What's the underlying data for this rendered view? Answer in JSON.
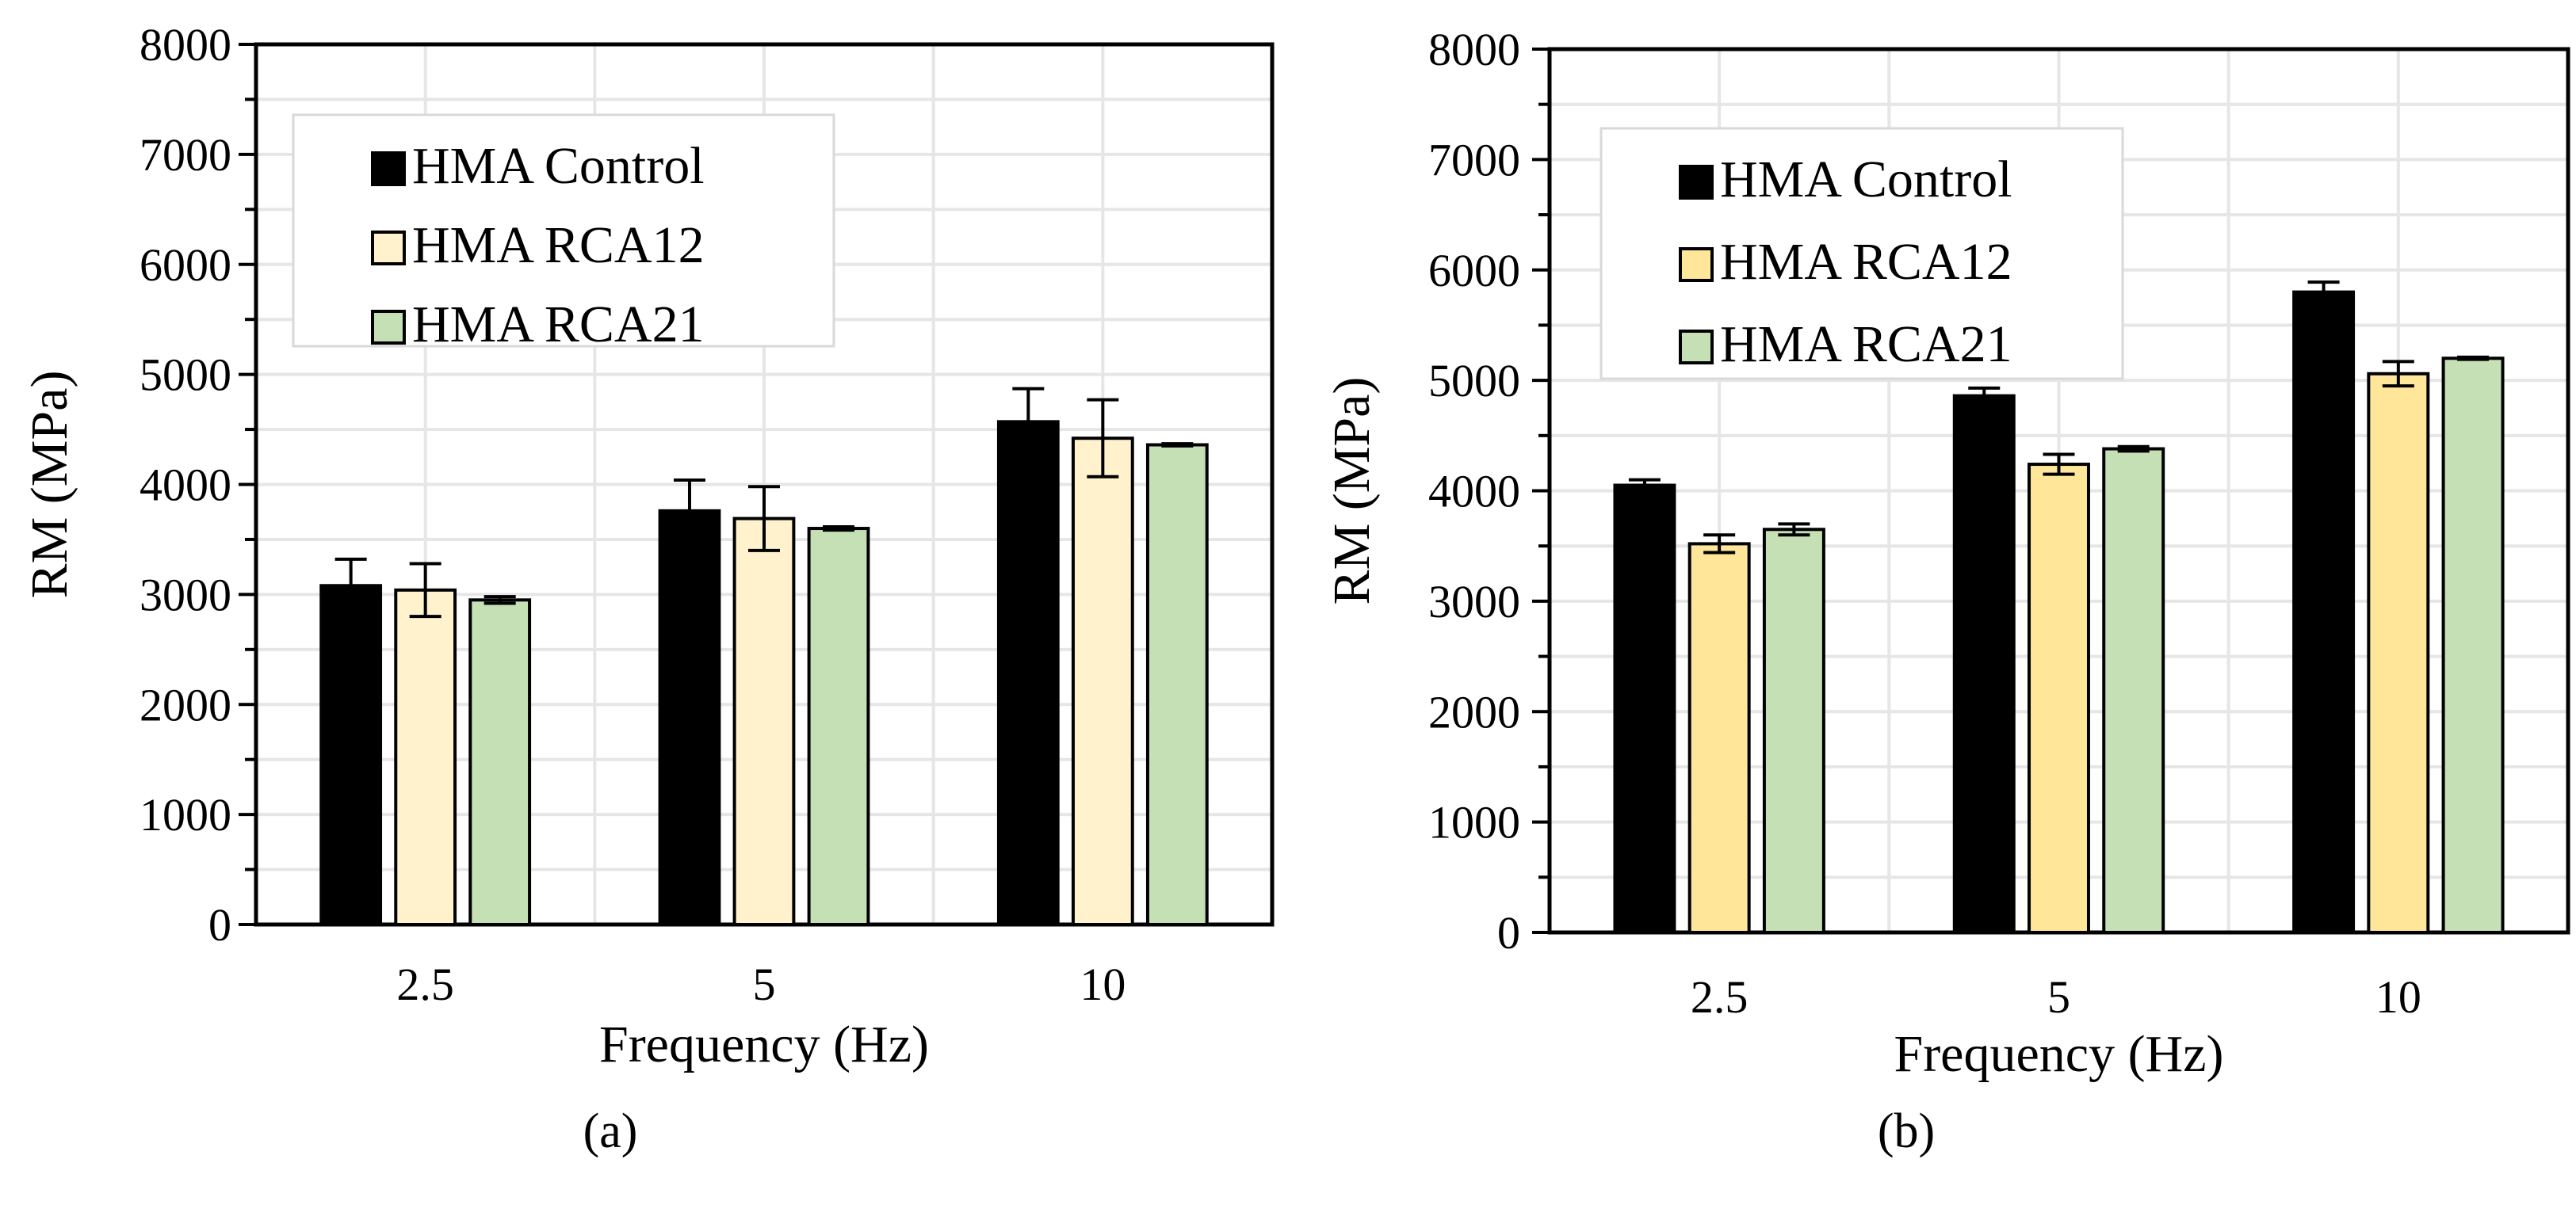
{
  "chart_data": [
    {
      "type": "bar",
      "panel_label": "(a)",
      "xlabel": "Frequency (Hz)",
      "ylabel": "RM (MPa)",
      "categories": [
        "2.5",
        "5",
        "10"
      ],
      "ylim": [
        0,
        8000
      ],
      "yticks": [
        "0",
        "1000",
        "2000",
        "3000",
        "4000",
        "5000",
        "6000",
        "7000",
        "8000"
      ],
      "grid": true,
      "legend_position": "top-left",
      "series": [
        {
          "name": "HMA Control",
          "color": "#000000",
          "values": [
            3080,
            3760,
            4570
          ],
          "errors": [
            240,
            280,
            300
          ]
        },
        {
          "name": "HMA RCA12",
          "color": "#FFF2CC",
          "values": [
            3040,
            3690,
            4420
          ],
          "errors": [
            240,
            290,
            350
          ]
        },
        {
          "name": "HMA RCA21",
          "color": "#C5E0B4",
          "values": [
            2950,
            3600,
            4360
          ],
          "errors": [
            30,
            15,
            10
          ]
        }
      ]
    },
    {
      "type": "bar",
      "panel_label": "(b)",
      "xlabel": "Frequency (Hz)",
      "ylabel": "RM (MPa)",
      "categories": [
        "2.5",
        "5",
        "10"
      ],
      "ylim": [
        0,
        8000
      ],
      "yticks": [
        "0",
        "1000",
        "2000",
        "3000",
        "4000",
        "5000",
        "6000",
        "7000",
        "8000"
      ],
      "grid": true,
      "legend_position": "top-left",
      "series": [
        {
          "name": "HMA Control",
          "color": "#000000",
          "values": [
            4050,
            4860,
            5800
          ],
          "errors": [
            50,
            70,
            90
          ]
        },
        {
          "name": "HMA RCA12",
          "color": "#FFE699",
          "values": [
            3520,
            4240,
            5060
          ],
          "errors": [
            80,
            90,
            110
          ]
        },
        {
          "name": "HMA RCA21",
          "color": "#C5E0B4",
          "values": [
            3650,
            4380,
            5200
          ],
          "errors": [
            50,
            20,
            10
          ]
        }
      ]
    }
  ]
}
